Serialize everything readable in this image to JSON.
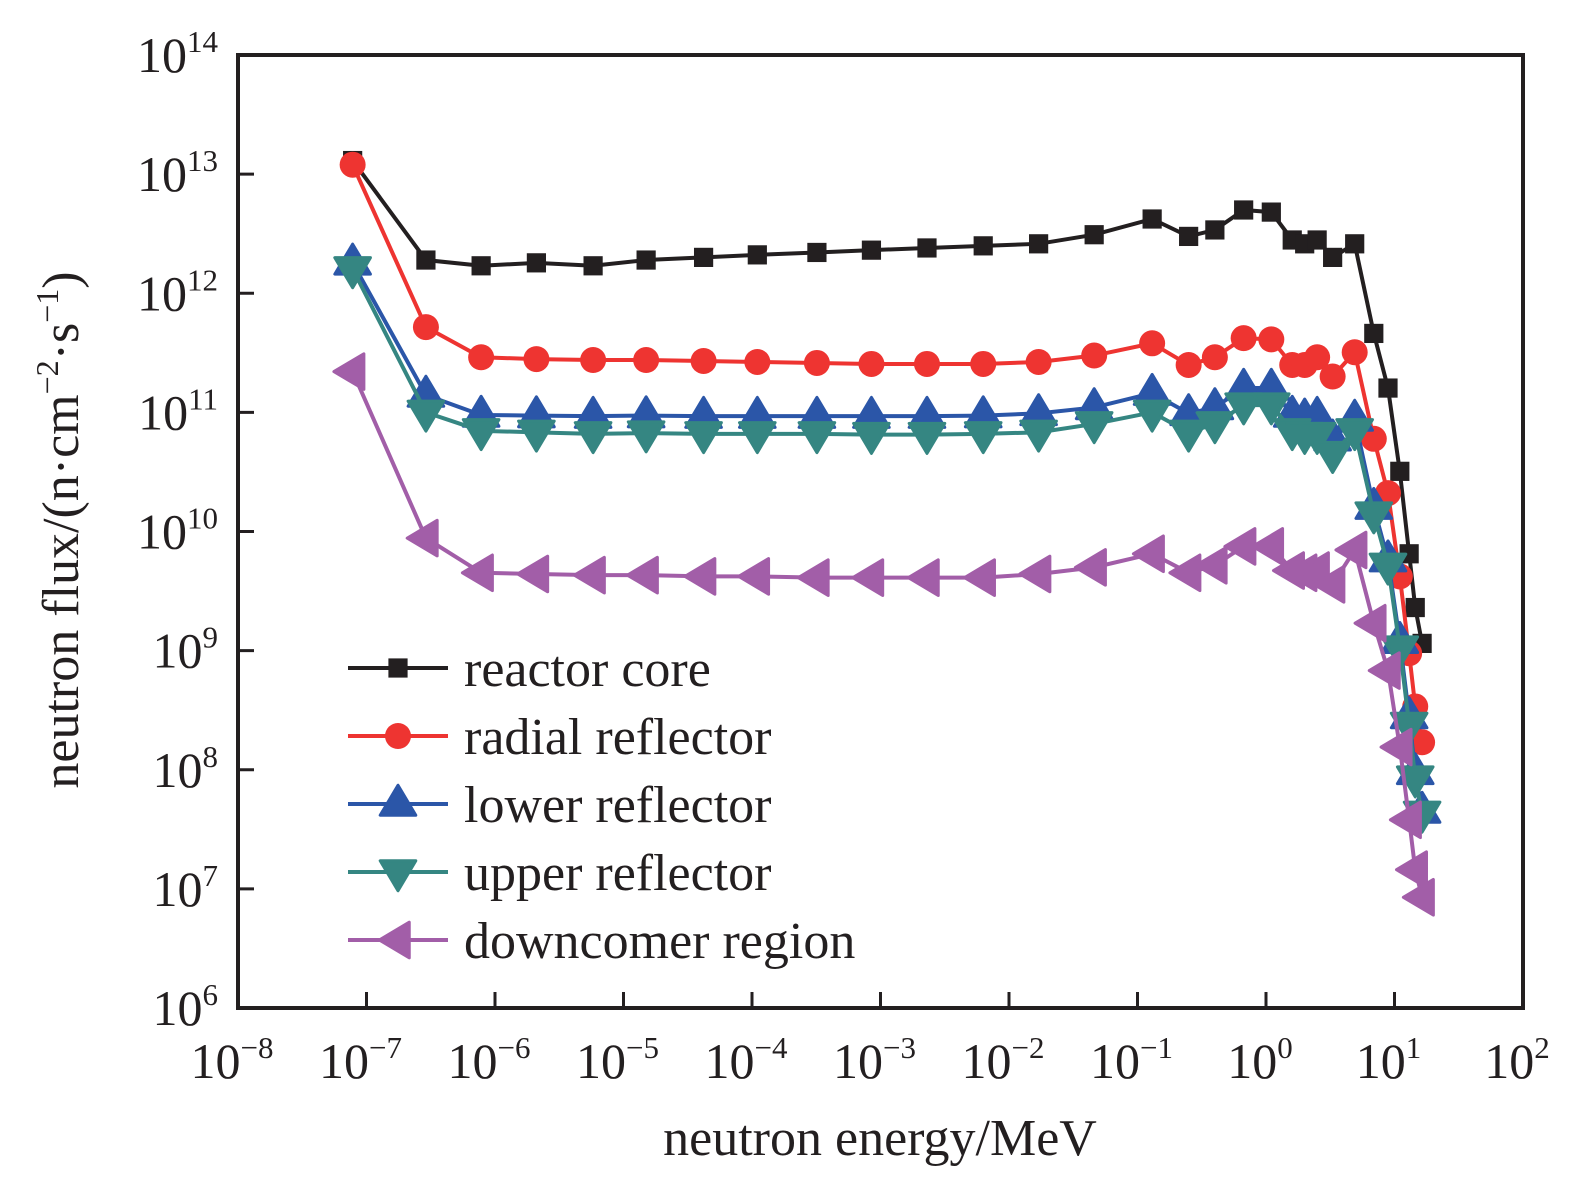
{
  "chart_data": {
    "type": "line",
    "title": "",
    "xlabel": "neutron energy/MeV",
    "ylabel": "neutron flux/(n·cm⁻²·s⁻¹)",
    "ylabel_parts": {
      "main": "neutron flux/(n·cm",
      "exp1": "−2",
      "mid": "·s",
      "exp2": "−1",
      "end": ")"
    },
    "xscale": "log",
    "yscale": "log",
    "xlim": [
      1e-08,
      100
    ],
    "ylim": [
      1000000.0,
      100000000000000.0
    ],
    "grid": false,
    "legend_position": "lower-left",
    "x_ticks": [
      {
        "base": "10",
        "exp": "−8",
        "value": 1e-08
      },
      {
        "base": "10",
        "exp": "−7",
        "value": 1e-07
      },
      {
        "base": "10",
        "exp": "−6",
        "value": 1e-06
      },
      {
        "base": "10",
        "exp": "−5",
        "value": 1e-05
      },
      {
        "base": "10",
        "exp": "−4",
        "value": 0.0001
      },
      {
        "base": "10",
        "exp": "−3",
        "value": 0.001
      },
      {
        "base": "10",
        "exp": "−2",
        "value": 0.01
      },
      {
        "base": "10",
        "exp": "−1",
        "value": 0.1
      },
      {
        "base": "10",
        "exp": "0",
        "value": 1
      },
      {
        "base": "10",
        "exp": "1",
        "value": 10
      },
      {
        "base": "10",
        "exp": "2",
        "value": 100
      }
    ],
    "y_ticks": [
      {
        "base": "10",
        "exp": "6",
        "value": 1000000.0
      },
      {
        "base": "10",
        "exp": "7",
        "value": 10000000.0
      },
      {
        "base": "10",
        "exp": "8",
        "value": 100000000.0
      },
      {
        "base": "10",
        "exp": "9",
        "value": 1000000000.0
      },
      {
        "base": "10",
        "exp": "10",
        "value": 10000000000.0
      },
      {
        "base": "10",
        "exp": "11",
        "value": 100000000000.0
      },
      {
        "base": "10",
        "exp": "12",
        "value": 1000000000000.0
      },
      {
        "base": "10",
        "exp": "13",
        "value": 10000000000000.0
      },
      {
        "base": "10",
        "exp": "14",
        "value": 100000000000000.0
      }
    ],
    "x": [
      7.8e-08,
      2.9e-07,
      7.8e-07,
      2.1e-06,
      5.8e-06,
      1.5e-05,
      4.2e-05,
      0.00011,
      0.00032,
      0.00085,
      0.0023,
      0.0063,
      0.017,
      0.046,
      0.13,
      0.25,
      0.4,
      0.67,
      1.1,
      1.6,
      2.0,
      2.5,
      3.3,
      4.9,
      6.9,
      8.9,
      11,
      13,
      14.5,
      16.4
    ],
    "series": [
      {
        "name": "reactor core",
        "color": "#231f20",
        "marker": "square",
        "values": [
          13000000000000.0,
          1900000000000.0,
          1700000000000.0,
          1800000000000.0,
          1700000000000.0,
          1900000000000.0,
          2000000000000.0,
          2100000000000.0,
          2200000000000.0,
          2300000000000.0,
          2400000000000.0,
          2500000000000.0,
          2600000000000.0,
          3100000000000.0,
          4200000000000.0,
          3000000000000.0,
          3400000000000.0,
          5000000000000.0,
          4800000000000.0,
          2800000000000.0,
          2600000000000.0,
          2800000000000.0,
          2000000000000.0,
          2600000000000.0,
          460000000000.0,
          160000000000.0,
          32000000000.0,
          6500000000.0,
          2300000000.0,
          1150000000.0
        ]
      },
      {
        "name": "radial reflector",
        "color": "#ee3431",
        "marker": "circle",
        "values": [
          12000000000000.0,
          520000000000.0,
          290000000000.0,
          280000000000.0,
          275000000000.0,
          275000000000.0,
          270000000000.0,
          265000000000.0,
          260000000000.0,
          255000000000.0,
          255000000000.0,
          255000000000.0,
          265000000000.0,
          300000000000.0,
          380000000000.0,
          250000000000.0,
          290000000000.0,
          420000000000.0,
          410000000000.0,
          250000000000.0,
          250000000000.0,
          290000000000.0,
          200000000000.0,
          320000000000.0,
          60000000000.0,
          21000000000.0,
          4200000000.0,
          950000000.0,
          340000000.0,
          170000000.0
        ]
      },
      {
        "name": "lower reflector",
        "color": "#2b56a8",
        "marker": "triangle-up",
        "values": [
          1800000000000.0,
          140000000000.0,
          95000000000.0,
          94000000000.0,
          93000000000.0,
          94000000000.0,
          93000000000.0,
          93000000000.0,
          93000000000.0,
          93000000000.0,
          93000000000.0,
          94000000000.0,
          98000000000.0,
          110000000000.0,
          145000000000.0,
          98000000000.0,
          110000000000.0,
          160000000000.0,
          160000000000.0,
          95000000000.0,
          90000000000.0,
          93000000000.0,
          60000000000.0,
          88000000000.0,
          16000000000.0,
          5800000000.0,
          1200000000.0,
          280000000.0,
          95000000.0,
          45000000.0
        ]
      },
      {
        "name": "upper reflector",
        "color": "#358682",
        "marker": "triangle-down",
        "values": [
          1600000000000.0,
          100000000000.0,
          70000000000.0,
          68000000000.0,
          66000000000.0,
          67000000000.0,
          66000000000.0,
          66000000000.0,
          66000000000.0,
          65000000000.0,
          65000000000.0,
          66000000000.0,
          68000000000.0,
          80000000000.0,
          100000000000.0,
          68000000000.0,
          80000000000.0,
          115000000000.0,
          115000000000.0,
          70000000000.0,
          65000000000.0,
          65000000000.0,
          45000000000.0,
          70000000000.0,
          14000000000.0,
          5200000000.0,
          1050000000.0,
          240000000.0,
          85000000.0,
          43000000.0
        ]
      },
      {
        "name": "downcomer region",
        "color": "#a25ea8",
        "marker": "triangle-left",
        "values": [
          220000000000.0,
          8800000000.0,
          4500000000.0,
          4400000000.0,
          4300000000.0,
          4300000000.0,
          4200000000.0,
          4200000000.0,
          4100000000.0,
          4100000000.0,
          4100000000.0,
          4100000000.0,
          4400000000.0,
          5000000000.0,
          6500000000.0,
          4500000000.0,
          5200000000.0,
          7500000000.0,
          7500000000.0,
          4700000000.0,
          4500000000.0,
          4700000000.0,
          3600000000.0,
          7000000000.0,
          1700000000.0,
          680000000.0,
          155000000.0,
          38000000.0,
          14500000.0,
          8500000.0
        ]
      }
    ]
  }
}
